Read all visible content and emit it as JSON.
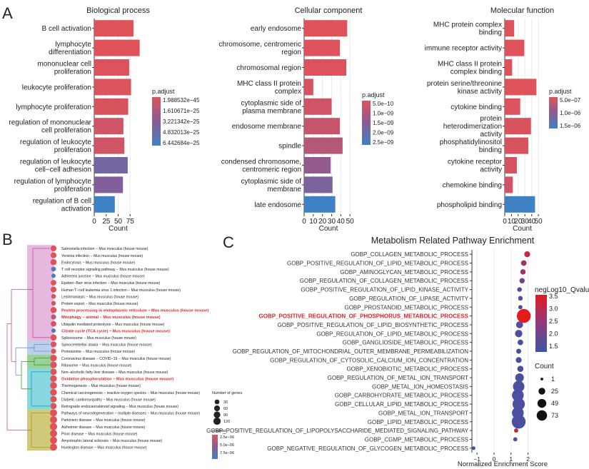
{
  "panel_labels": {
    "a": "A",
    "b": "B",
    "c": "C"
  },
  "colors": {
    "bar_high": "#e0525a",
    "bar_mid": "#8a5b94",
    "bar_low": "#3f82c4",
    "grid": "#ebebeb",
    "bubble_red": "#e41a1c",
    "bubble_blue": "#3d55a4",
    "bubble_purple": "#8e3a7f",
    "highlight_text": "#d62728",
    "dendro_pink": "#e7b8df",
    "dendro_blue": "#bcd0ee",
    "dendro_green": "#9ad39a",
    "dendro_cyan": "#86d7df",
    "dendro_olive": "#d1c97a"
  },
  "chart_data": [
    {
      "id": "bp",
      "type": "bar",
      "orientation": "horizontal",
      "title": "Biological process",
      "xlabel": "Count",
      "xlim": [
        0,
        100
      ],
      "xticks": [
        "0",
        "25",
        "50",
        "75"
      ],
      "categories": [
        "B cell activation",
        "lymphocyte differentiation",
        "mononuclear cell proliferation",
        "leukocyte proliferation",
        "lymphocyte proliferation",
        "regulation of mononuclear cell proliferation",
        "regulation of leukocyte proliferation",
        "regulation of leukocyte cell−cell adhesion",
        "regulation of lymphocyte proliferation",
        "regulation of B cell activation"
      ],
      "values": [
        82,
        95,
        73,
        77,
        71,
        61,
        63,
        70,
        60,
        43
      ],
      "padj_level": [
        0.0,
        0.0,
        0.02,
        0.03,
        0.04,
        0.1,
        0.1,
        0.65,
        0.55,
        1.0
      ],
      "legend": {
        "title": "p.adjust",
        "labels": [
          "1.988532e−45",
          "1.610671e−25",
          "3.221342e−25",
          "4.832013e−25",
          "6.442684e−25"
        ]
      }
    },
    {
      "id": "cc",
      "type": "bar",
      "orientation": "horizontal",
      "title": "Cellular component",
      "xlabel": "Count",
      "xlim": [
        0,
        53
      ],
      "xticks": [
        "0",
        "10",
        "20",
        "30",
        "40",
        "50"
      ],
      "categories": [
        "early endosome",
        "chromosome, centromeric region",
        "chromosomal region",
        "MHC class II protein complex",
        "cytoplasmic side of plasma membrane",
        "endosome membrane",
        "spindle",
        "condensed chromosome, centromeric region",
        "cytoplasmic side of membrane",
        "late endosome"
      ],
      "values": [
        47,
        39,
        46,
        10,
        30,
        39,
        42,
        29,
        31,
        34
      ],
      "padj_level": [
        0.0,
        0.02,
        0.02,
        0.05,
        0.1,
        0.15,
        0.25,
        0.45,
        0.6,
        1.0
      ],
      "legend": {
        "title": "p.adjust",
        "labels": [
          "5.0e−10",
          "1.0e−09",
          "1.5e−09",
          "2.0e−09",
          "2.5e−09"
        ]
      }
    },
    {
      "id": "mf",
      "type": "bar",
      "orientation": "horizontal",
      "title": "Molecular function",
      "xlabel": "Count",
      "xlim": [
        0,
        52
      ],
      "xticks": [
        "0",
        "10",
        "20",
        "30",
        "40",
        "50"
      ],
      "categories": [
        "MHC protein complex binding",
        "immune receptor activity",
        "MHC class II protein complex binding",
        "protein serine/threonine kinase activity",
        "cytokine binding",
        "protein heterodimerization activity",
        "phosphatidylinositol binding",
        "cytokine receptor activity",
        "chemokine binding",
        "phospholipid binding"
      ],
      "values": [
        14,
        29,
        11,
        47,
        23,
        39,
        35,
        18,
        12,
        45
      ],
      "padj_level": [
        0.0,
        0.0,
        0.0,
        0.0,
        0.02,
        0.04,
        0.05,
        0.06,
        0.08,
        1.0
      ],
      "legend": {
        "title": "p.adjust",
        "labels": [
          "5.0e−07",
          "1.0e−06",
          "1.5e−06"
        ]
      }
    },
    {
      "id": "kegg",
      "type": "dot",
      "title": "",
      "categories": [
        "Salmonella infection − Mus musculus (house mouse)",
        "Yersinia infection − Mus musculus (house mouse)",
        "Endocytosis − Mus musculus (house mouse)",
        "T cell receptor signaling pathway − Mus musculus (house mouse)",
        "Adherens junction − Mus musculus (house mouse)",
        "Epstein−Barr virus infection − Mus musculus (house mouse)",
        "Human T−cell leukemia virus 1 infection − Mus musculus (house mouse)",
        "Leishmaniasis − Mus musculus (house mouse)",
        "Protein export − Mus musculus (house mouse)",
        "Protein processing in endoplasmic reticulum − Mus musculus (house mouse)",
        "Mitophagy − animal − Mus musculus (house mouse)",
        "Ubiquitin mediated proteolysis − Mus musculus (house mouse)",
        "Citrate cycle (TCA cycle) − Mus musculus (house mouse)",
        "Spliceosome − Mus musculus (house mouse)",
        "Spinocerebellar ataxia − Mus musculus (house mouse)",
        "Proteasome − Mus musculus (house mouse)",
        "Coronavirus disease − COVID−19 − Mus musculus (house mouse)",
        "Ribosome − Mus musculus (house mouse)",
        "Non−alcoholic fatty liver disease − Mus musculus (house mouse)",
        "Oxidative phosphorylation − Mus musculus (house mouse)",
        "Thermogenesis − Mus musculus (house mouse)",
        "Chemical carcinogenesis − reactive oxygen species − Mus musculus (house mouse)",
        "Diabetic cardiomyopathy − Mus musculus (house mouse)",
        "Retrograde endocannabinoid signaling − Mus musculus (house mouse)",
        "Pathways of neurodegeneration − multiple diseases − Mus musculus (house mouse)",
        "Parkinson disease − Mus musculus (house mouse)",
        "Alzheimer disease − Mus musculus (house mouse)",
        "Prion disease − Mus musculus (house mouse)",
        "Amyotrophic lateral sclerosis − Mus musculus (house mouse)",
        "Huntington disease − Mus musculus (house mouse)"
      ],
      "highlighted": [
        9,
        10,
        12,
        19
      ],
      "gene_counts": [
        60,
        60,
        70,
        30,
        20,
        50,
        60,
        30,
        25,
        70,
        40,
        50,
        20,
        70,
        60,
        40,
        90,
        90,
        80,
        90,
        100,
        90,
        80,
        70,
        110,
        110,
        120,
        110,
        110,
        110
      ],
      "padj_level": [
        0.0,
        0.0,
        0.0,
        0.9,
        0.9,
        0.0,
        0.0,
        0.05,
        0.05,
        0.0,
        0.2,
        0.05,
        0.9,
        0.0,
        0.0,
        0.0,
        0.0,
        0.0,
        0.0,
        0.0,
        0.0,
        0.0,
        0.0,
        0.0,
        0.0,
        0.0,
        0.0,
        0.0,
        0.0,
        0.0
      ],
      "clusters": [
        {
          "name": "pink",
          "rows": [
            0,
            13
          ]
        },
        {
          "name": "blue",
          "rows": [
            14,
            15
          ]
        },
        {
          "name": "green",
          "rows": [
            16,
            17
          ]
        },
        {
          "name": "cyan",
          "rows": [
            18,
            23
          ]
        },
        {
          "name": "olive",
          "rows": [
            24,
            29
          ]
        }
      ],
      "size_legend": {
        "title": "Number of genes",
        "labels": [
          "30",
          "60",
          "90",
          "120"
        ]
      },
      "color_legend": {
        "title": "p.adjust",
        "labels": [
          "2.5e−06",
          "5.0e−06",
          "7.5e−06"
        ]
      }
    },
    {
      "id": "metab",
      "type": "scatter",
      "title": "Metabolism Related Pathway Enrichment",
      "xlabel": "Normalized Enrichment Score",
      "xlim": [
        -1.3,
        2.1
      ],
      "xticks": [
        -1,
        0,
        1,
        2
      ],
      "xtick_labels": [
        "−1",
        "0",
        "1",
        "2"
      ],
      "categories": [
        "GOBP_COLLAGEN_METABOLIC_PROCESS",
        "GOBP_POSITIVE_REGULATION_OF_LIPID_METABOLIC_PROCESS",
        "GOBP_AMINOGLYCAN_METABOLIC_PROCESS",
        "GOBP_REGULATION_OF_COLLAGEN_METABOLIC_PROCESS",
        "GOBP_POSITIVE_REGULATION_OF_LIPID_KINASE_ACTIVITY",
        "GOBP_REGULATION_OF_LIPASE_ACTIVITY",
        "GOBP_PROSTANOID_METABOLIC_PROCESS",
        "GOBP_POSITIVE_REGULATION_OF_PHOSPHORUS_METABOLIC_PROCESS",
        "GOBP_POSITIVE_REGULATION_OF_LIPID_BIOSYNTHETIC_PROCESS",
        "GOBP_REGULATION_OF_LIPID_METABOLIC_PROCESS",
        "GOBP_GANGLIOSIDE_METABOLIC_PROCESS",
        "GOBP_REGULATION_OF_MITOCHONDRIAL_OUTER_MEMBRANE_PERMEABILIZATION",
        "GOBP_REGULATION_OF_CYTOSOLIC_CALCIUM_ION_CONCENTRATION",
        "GOBP_XENOBIOTIC_METABOLIC_PROCESS",
        "GOBP_REGULATION_OF_METAL_ION_TRANSPORT",
        "GOBP_METAL_ION_HOMEOSTASIS",
        "GOBP_CARBOHYDRATE_METABOLIC_PROCESS",
        "GOBP_CELLULAR_LIPID_METABOLIC_PROCESS",
        "GOBP_METAL_ION_TRANSPORT",
        "GOBP_LIPID_METABOLIC_PROCESS",
        "GOBP_POSITIVE_REGULATION_OF_LIPOPOLYSACCHARIDE_MEDIATED_SIGNALING_PATHWAY",
        "GOBP_CGMP_METABOLIC_PROCESS",
        "GOBP_NEGATIVE_REGULATION_OF_GLYCOGEN_METABOLIC_PROCESS"
      ],
      "highlighted": [
        7
      ],
      "x": [
        1.95,
        1.75,
        1.7,
        1.65,
        1.5,
        1.55,
        1.55,
        1.75,
        1.5,
        1.45,
        1.55,
        1.45,
        1.45,
        1.55,
        1.5,
        1.45,
        1.4,
        1.45,
        1.4,
        1.45,
        1.3,
        1.25,
        -1.2
      ],
      "count": [
        7,
        6,
        5,
        5,
        3,
        3,
        2,
        73,
        12,
        14,
        6,
        4,
        7,
        8,
        22,
        45,
        49,
        55,
        49,
        73,
        2,
        2,
        1
      ],
      "negLog10_Qvalue": [
        3.0,
        2.6,
        2.6,
        2.0,
        1.5,
        1.5,
        1.5,
        3.5,
        1.5,
        1.4,
        1.4,
        1.4,
        1.4,
        1.4,
        1.4,
        1.4,
        1.4,
        1.4,
        1.4,
        1.4,
        3.0,
        1.5,
        1.2
      ],
      "color_legend": {
        "title": "negLog10_Qvalue",
        "labels": [
          "3.5",
          "3.0",
          "2.5",
          "2.0",
          "1.5"
        ]
      },
      "size_legend": {
        "title": "Count",
        "labels": [
          "1",
          "25",
          "49",
          "73"
        ]
      }
    }
  ]
}
